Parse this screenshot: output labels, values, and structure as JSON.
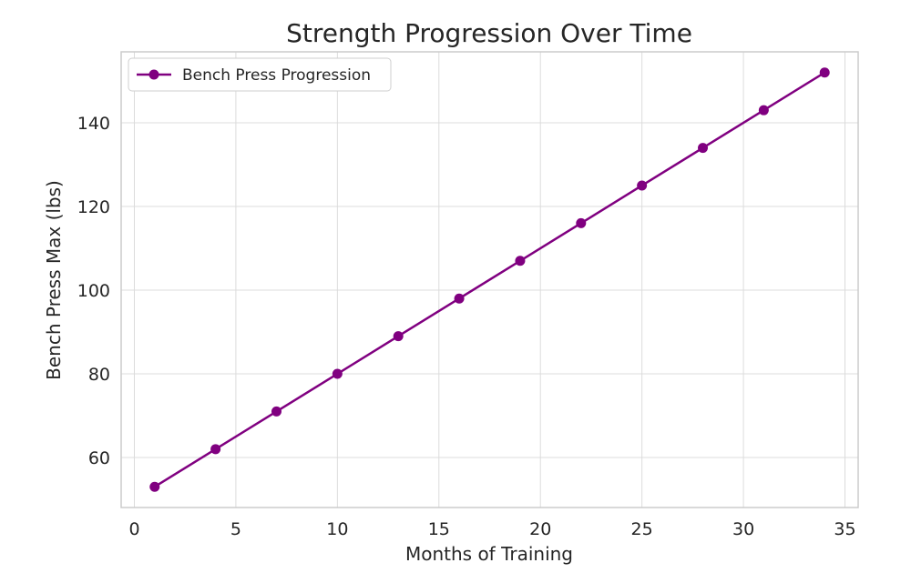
{
  "chart_data": {
    "type": "line",
    "title": "Strength Progression Over Time",
    "xlabel": "Months of Training",
    "ylabel": "Bench Press Max (lbs)",
    "xlim": [
      -0.65,
      35.65
    ],
    "ylim": [
      48.05,
      156.95
    ],
    "xticks": [
      0,
      5,
      10,
      15,
      20,
      25,
      30,
      35
    ],
    "yticks": [
      60,
      80,
      100,
      120,
      140
    ],
    "grid": true,
    "legend_position": "top-left",
    "series": [
      {
        "name": "Bench Press Progression",
        "color": "#800080",
        "marker": "circle",
        "x": [
          1,
          4,
          7,
          10,
          13,
          16,
          19,
          22,
          25,
          28,
          31,
          34
        ],
        "y": [
          53,
          62,
          71,
          80,
          89,
          98,
          107,
          116,
          125,
          134,
          143,
          152
        ]
      }
    ]
  }
}
